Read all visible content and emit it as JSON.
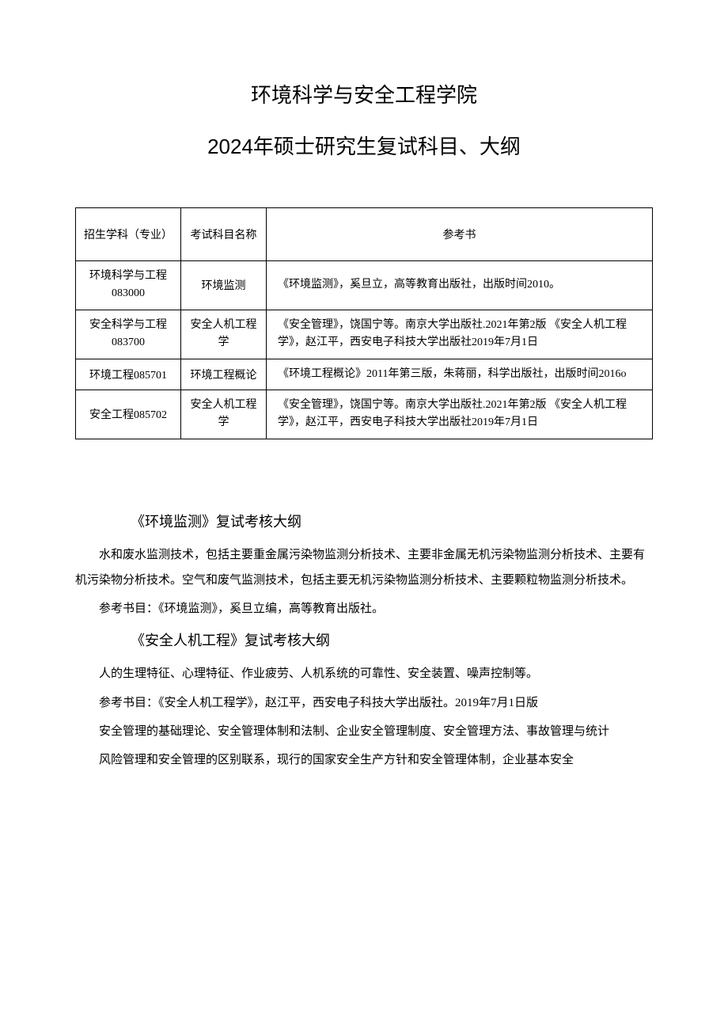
{
  "title_line1": "环境科学与安全工程学院",
  "title_line2": "2024年硕士研究生复试科目、大纲",
  "table": {
    "headers": {
      "col1": "招生学科（专业）",
      "col2": "考试科目名称",
      "col3": "参考书"
    },
    "rows": [
      {
        "col1_l1": "环境科学与工程",
        "col1_l2": "083000",
        "col2": "环境监测",
        "col3": "《环境监测》，奚旦立，高等教育出版社，出版时间2010。"
      },
      {
        "col1_l1": "安全科学与工程",
        "col1_l2": "083700",
        "col2_l1": "安全人机工程",
        "col2_l2": "学",
        "col3": "《安全管理》，饶国宁等。南京大学出版社.2021年第2版 《安全人机工程学》，赵江平，西安电子科技大学出版社2019年7月1日"
      },
      {
        "col1": "环境工程085701",
        "col2": "环境工程概论",
        "col3": "《环境工程概论》2011年第三版，朱蒋丽，科学出版社，出版时间2016o"
      },
      {
        "col1": "安全工程085702",
        "col2_l1": "安全人机工程",
        "col2_l2": "学",
        "col3": "《安全管理》，饶国宁等。南京大学出版社.2021年第2版 《安全人机工程学》，赵江平，西安电子科技大学出版社2019年7月1日"
      }
    ]
  },
  "sections": {
    "s1": {
      "heading": "《环境监测》复试考核大纲",
      "p1": "水和废水监测技术，包括主要重金属污染物监测分析技术、主要非金属无机污染物监测分析技术、主要有机污染物分析技术。空气和废气监测技术，包括主要无机污染物监测分析技术、主要颗粒物监测分析技术。",
      "p2": "参考书目：《环境监测》，奚旦立编，高等教育出版社。"
    },
    "s2": {
      "heading": "《安全人机工程》复试考核大纲",
      "p1": "人的生理特征、心理特征、作业疲劳、人机系统的可靠性、安全装置、噪声控制等。",
      "p2": "参考书目：《安全人机工程学》，赵江平，西安电子科技大学出版社。2019年7月1日版",
      "p3": "安全管理的基础理论、安全管理体制和法制、企业安全管理制度、安全管理方法、事故管理与统计",
      "p4": "风险管理和安全管理的区别联系，现行的国家安全生产方针和安全管理体制，企业基本安全"
    }
  }
}
